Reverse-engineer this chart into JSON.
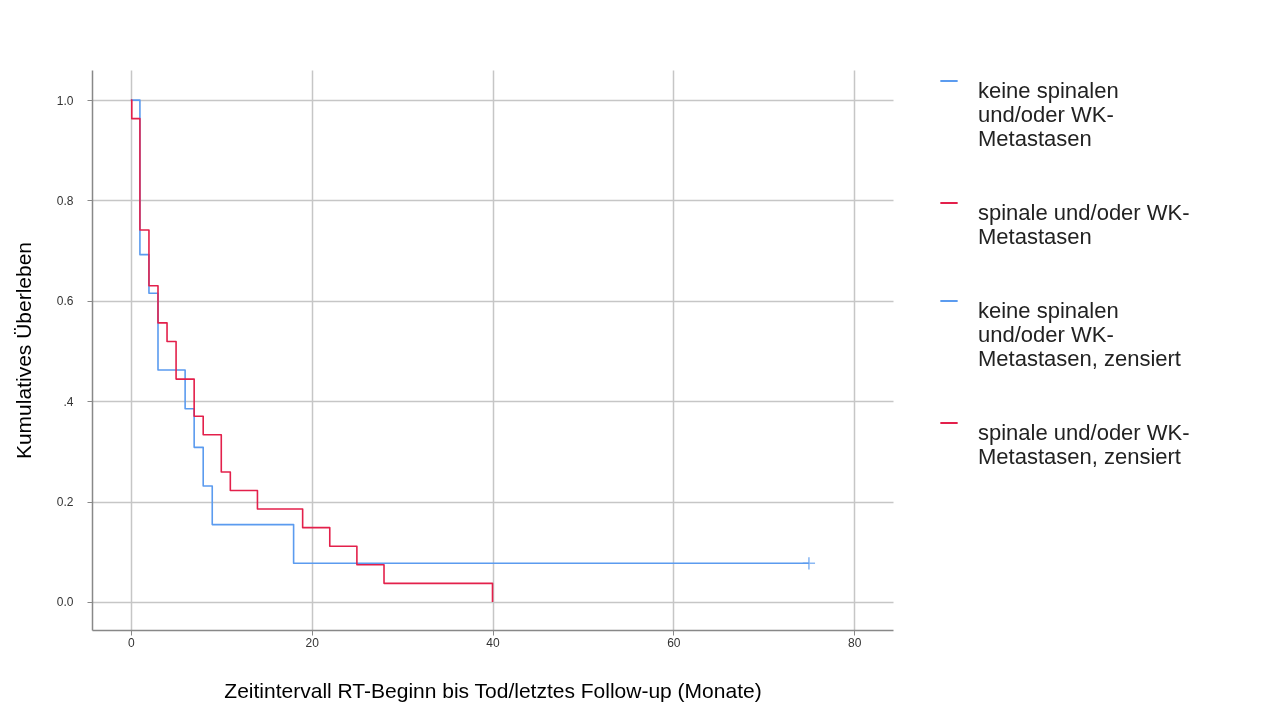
{
  "chart_data": {
    "type": "step",
    "xlabel": "Zeitintervall RT-Beginn bis Tod/letztes Follow-up (Monate)",
    "ylabel": "Kumulatives Überleben",
    "xlim": [
      -4.3,
      84.3
    ],
    "ylim": [
      -0.056,
      1.06
    ],
    "xticks": [
      0,
      20,
      40,
      60,
      80
    ],
    "yticks": [
      {
        "value": 0,
        "label": "0.0"
      },
      {
        "value": 0.2,
        "label": "0.2"
      },
      {
        "value": 0.4,
        "label": ".4"
      },
      {
        "value": 0.6,
        "label": "0.6"
      },
      {
        "value": 0.8,
        "label": "0.8"
      },
      {
        "value": 1,
        "label": "1.0"
      }
    ],
    "grid": true,
    "legend": "right",
    "series": [
      {
        "name": "keine spinalen und/oder WK-Metastasen",
        "color": "#5b9bef",
        "x": [
          0,
          1,
          2,
          3,
          6,
          7,
          8,
          9,
          18,
          75
        ],
        "values": [
          1,
          0.692,
          0.615,
          0.462,
          0.385,
          0.308,
          0.231,
          0.154,
          0.077,
          0.077
        ]
      },
      {
        "name": "spinale und/oder WK-Metastasen",
        "color": "#e3204b",
        "x": [
          0,
          0.1,
          1,
          2,
          3,
          4,
          5,
          7,
          8,
          10,
          11,
          14,
          19,
          22,
          25,
          28,
          40
        ],
        "values": [
          1,
          0.963,
          0.741,
          0.63,
          0.556,
          0.519,
          0.444,
          0.37,
          0.333,
          0.259,
          0.222,
          0.185,
          0.148,
          0.111,
          0.074,
          0.037,
          0
        ]
      },
      {
        "name": "keine spinalen und/oder WK-Metastasen, zensiert",
        "type": "scatter",
        "marker": "cross",
        "color": "#5b9bef",
        "x": [
          75
        ],
        "values": [
          0.077
        ]
      },
      {
        "name": "spinale und/oder WK-Metastasen, zensiert",
        "type": "scatter",
        "marker": "cross",
        "color": "#e3204b"
      }
    ]
  }
}
